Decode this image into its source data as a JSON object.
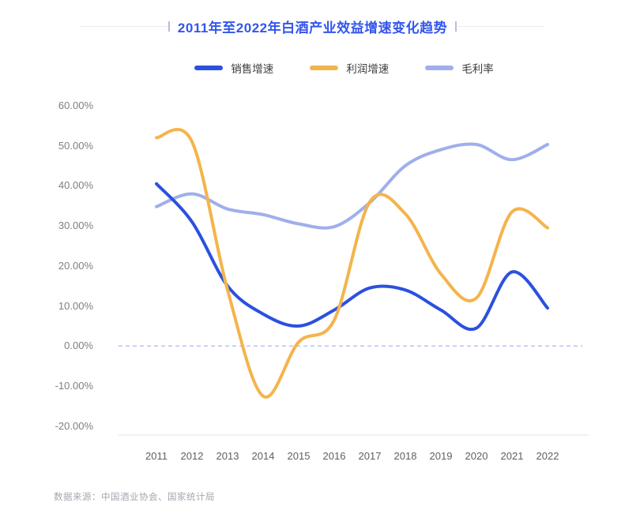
{
  "title": "2011年至2022年白酒产业效益增速变化趋势",
  "legend": {
    "items": [
      {
        "id": "sales",
        "label": "销售增速",
        "color": "#2B50E0"
      },
      {
        "id": "profit",
        "label": "利润增速",
        "color": "#F4B44C"
      },
      {
        "id": "margin",
        "label": "毛利率",
        "color": "#9FAFEC"
      }
    ]
  },
  "source_note": "数据来源：中国酒业协会、国家统计局",
  "colors": {
    "title": "#3355EC",
    "y_axis_text": "#7F7F7F",
    "x_axis_text": "#606060",
    "zero_line": "#B9C3F2",
    "axis_line": "#E5E5E8"
  },
  "chart_data": {
    "type": "line",
    "title": "2011年至2022年白酒产业效益增速变化趋势",
    "categories": [
      "2011",
      "2012",
      "2013",
      "2014",
      "2015",
      "2016",
      "2017",
      "2018",
      "2019",
      "2020",
      "2021",
      "2022"
    ],
    "series": [
      {
        "id": "sales",
        "name": "销售增速",
        "color": "#2B50E0",
        "values": [
          40.5,
          31,
          15,
          8,
          5,
          9,
          14.5,
          14,
          9,
          4.5,
          18.5,
          9.5
        ]
      },
      {
        "id": "profit",
        "name": "利润增速",
        "color": "#F4B44C",
        "values": [
          52,
          51,
          14,
          -12.5,
          1,
          6.5,
          36,
          33,
          18,
          12,
          33.5,
          29.5
        ]
      },
      {
        "id": "margin",
        "name": "毛利率",
        "color": "#9FAFEC",
        "values": [
          34.8,
          38,
          34.2,
          32.8,
          30.5,
          29.8,
          35.8,
          45,
          49,
          50.3,
          46.5,
          50.3
        ]
      }
    ],
    "ytick_labels": [
      "60.00%",
      "50.00%",
      "40.00%",
      "30.00%",
      "20.00%",
      "10.00%",
      "0.00%",
      "-10.00%",
      "-20.00%"
    ],
    "ytick_values": [
      60,
      50,
      40,
      30,
      20,
      10,
      0,
      -10,
      -20
    ],
    "ylim": [
      -25,
      62
    ],
    "xlabel": "",
    "ylabel": "",
    "grid": false,
    "zero_line": "dashed",
    "legend_position": "top",
    "smooth": true
  }
}
